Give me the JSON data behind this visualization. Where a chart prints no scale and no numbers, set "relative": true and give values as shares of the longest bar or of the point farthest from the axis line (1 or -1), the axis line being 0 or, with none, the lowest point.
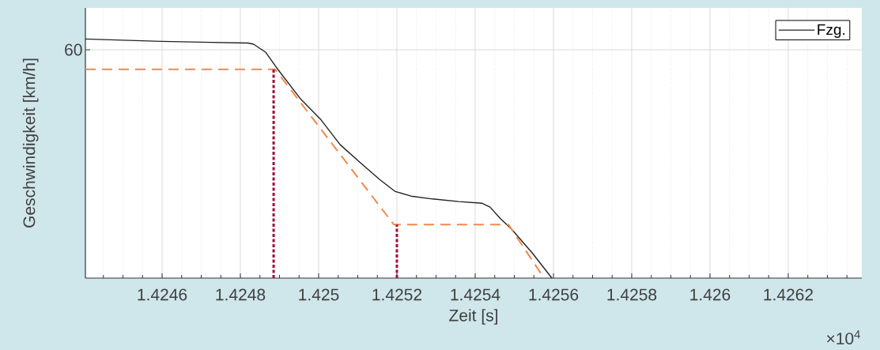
{
  "chart_data": {
    "type": "line",
    "relative": true,
    "xlabel": "Zeit [s]",
    "ylabel": "Geschwindigkeit [km/h]",
    "xlim": [
      1.424404,
      1.426388
    ],
    "xticks": [
      1.4246,
      1.4248,
      1.425,
      1.4252,
      1.4254,
      1.4256,
      1.4258,
      1.426,
      1.4262
    ],
    "grid": "x",
    "legend": "top right",
    "annotations": [
      "×10$^{4}$",
      "60"
    ],
    "series": [
      {
        "name": "Fzg.",
        "color": "#222222",
        "line_style": "solid",
        "x": [
          1.424404,
          1.424598,
          1.42482,
          1.424834,
          1.424865,
          1.424893,
          1.424954,
          1.425004,
          1.425055,
          1.425109,
          1.425156,
          1.425196,
          1.425236,
          1.425291,
          1.425358,
          1.425418,
          1.425438,
          1.425465,
          1.425493,
          1.425546,
          1.425596
        ],
        "values": [
          1,
          0.99,
          0.983,
          0.978,
          0.944,
          0.879,
          0.749,
          0.666,
          0.558,
          0.479,
          0.412,
          0.362,
          0.343,
          0.331,
          0.32,
          0.313,
          0.297,
          0.248,
          0.205,
          0.105,
          0
        ]
      },
      {
        "color": "#f08a4b",
        "line_style": "dashed",
        "x": [
          1.424404,
          1.424889,
          1.425192,
          1.425485,
          1.425576
        ],
        "values": [
          0.873,
          0.873,
          0.224,
          0.224,
          0
        ]
      },
      {
        "color": "#a0103a",
        "line_style": "dotted",
        "x": [
          1.424885,
          1.424885
        ],
        "values": [
          0,
          0.873
        ]
      },
      {
        "color": "#a0103a",
        "line_style": "dotted",
        "x": [
          1.4252,
          1.4252
        ],
        "values": [
          0,
          0.224
        ]
      }
    ]
  }
}
